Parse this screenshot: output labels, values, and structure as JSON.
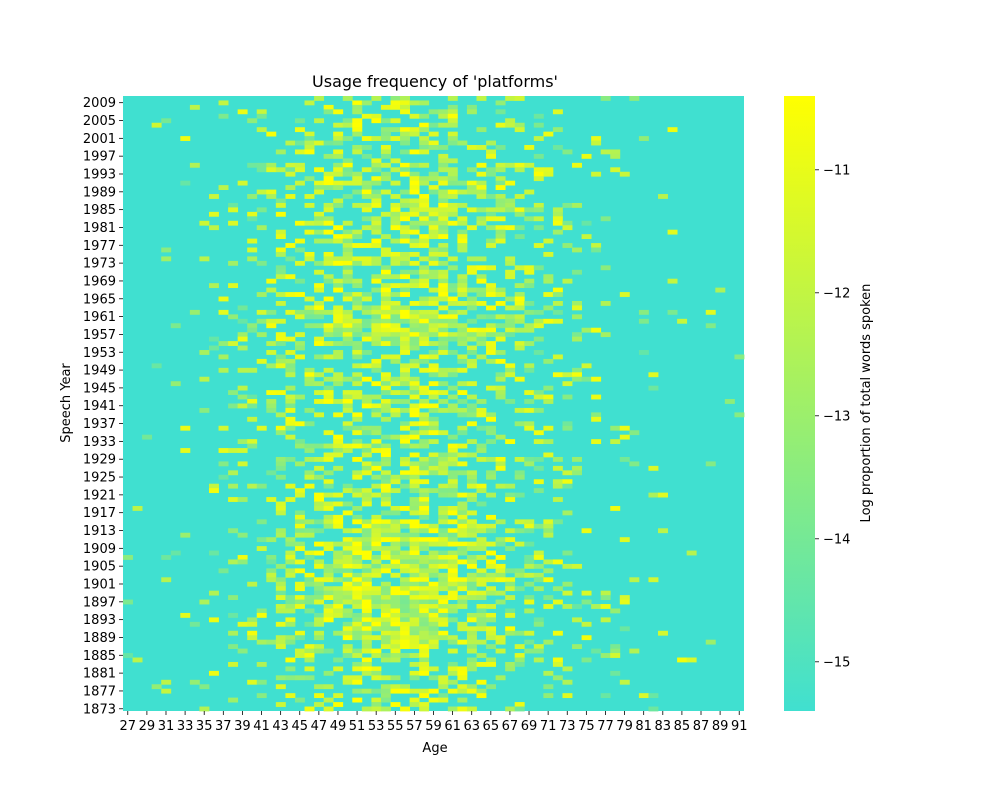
{
  "chart_data": {
    "type": "heatmap",
    "title": "Usage frequency of 'platforms'",
    "xlabel": "Age",
    "ylabel": "Speech Year",
    "x_range": [
      27,
      91
    ],
    "y_range": [
      1873,
      2010
    ],
    "x_tick_labels": [
      "27",
      "29",
      "31",
      "33",
      "35",
      "37",
      "39",
      "41",
      "43",
      "45",
      "47",
      "49",
      "51",
      "53",
      "55",
      "57",
      "59",
      "61",
      "63",
      "65",
      "67",
      "69",
      "71",
      "73",
      "75",
      "77",
      "79",
      "81",
      "83",
      "85",
      "87",
      "89",
      "91"
    ],
    "y_tick_labels": [
      "2009",
      "2005",
      "2001",
      "1997",
      "1993",
      "1989",
      "1985",
      "1981",
      "1977",
      "1973",
      "1969",
      "1965",
      "1961",
      "1957",
      "1953",
      "1949",
      "1945",
      "1941",
      "1937",
      "1933",
      "1929",
      "1925",
      "1921",
      "1917",
      "1913",
      "1909",
      "1905",
      "1901",
      "1897",
      "1893",
      "1889",
      "1885",
      "1881",
      "1877",
      "1873"
    ],
    "colorbar": {
      "label": "Log proportion of total words spoken",
      "min": -15.4,
      "max": -10.4,
      "ticks": [
        "-11",
        "-12",
        "-13",
        "-14",
        "-15"
      ],
      "tick_values": [
        -11,
        -12,
        -13,
        -14,
        -15
      ],
      "colors": [
        "#40e0d0",
        "#ffff00"
      ]
    },
    "background_value": -15.4,
    "density_profile": {
      "description": "observed values concentrate between ages ~37 and ~75, peaking ages 45-65, strongest in years 1890-1915 and 1955-1962",
      "age_peak_range": [
        45,
        65
      ],
      "year_hotspots": [
        [
          1890,
          1915
        ],
        [
          1955,
          1962
        ]
      ]
    }
  }
}
